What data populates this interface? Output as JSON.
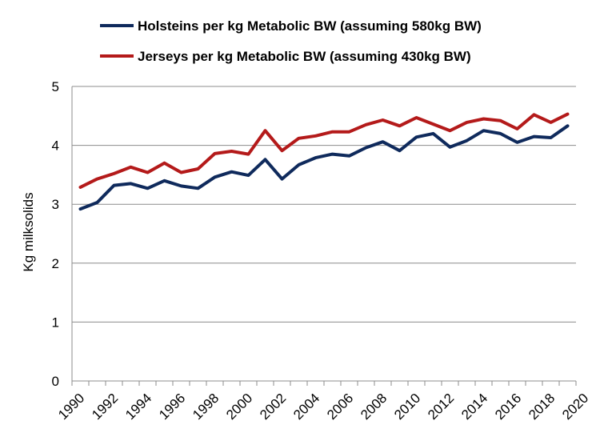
{
  "chart_data": {
    "type": "line",
    "title": "",
    "xlabel": "",
    "ylabel": "Kg milksolids",
    "ylim": [
      0,
      5
    ],
    "xlim": [
      1990,
      2020
    ],
    "y_ticks": [
      "0",
      "1",
      "2",
      "3",
      "4",
      "5"
    ],
    "x_ticks": [
      "1990",
      "1992",
      "1994",
      "1996",
      "1998",
      "2000",
      "2002",
      "2004",
      "2006",
      "2008",
      "2010",
      "2012",
      "2014",
      "2016",
      "2018",
      "2020"
    ],
    "grid": "horizontal",
    "legend_position": "top",
    "x": [
      1990.5,
      1991.5,
      1992.5,
      1993.5,
      1994.5,
      1995.5,
      1996.5,
      1997.5,
      1998.5,
      1999.5,
      2000.5,
      2001.5,
      2002.5,
      2003.5,
      2004.5,
      2005.5,
      2006.5,
      2007.5,
      2008.5,
      2009.5,
      2010.5,
      2011.5,
      2012.5,
      2013.5,
      2014.5,
      2015.5,
      2016.5,
      2017.5,
      2018.5,
      2019.5
    ],
    "series": [
      {
        "name": "Holsteins per kg Metabolic BW (assuming 580kg BW)",
        "color": "#0f2a5c",
        "values": [
          2.92,
          3.03,
          3.32,
          3.35,
          3.27,
          3.4,
          3.31,
          3.27,
          3.46,
          3.55,
          3.49,
          3.76,
          3.43,
          3.67,
          3.79,
          3.85,
          3.82,
          3.96,
          4.06,
          3.91,
          4.14,
          4.2,
          3.97,
          4.08,
          4.25,
          4.2,
          4.05,
          4.15,
          4.13,
          4.33
        ]
      },
      {
        "name": "Jerseys per kg Metabolic BW (assuming 430kg BW)",
        "color": "#b41a1a",
        "values": [
          3.29,
          3.43,
          3.52,
          3.63,
          3.54,
          3.7,
          3.54,
          3.6,
          3.86,
          3.9,
          3.85,
          4.25,
          3.91,
          4.12,
          4.16,
          4.23,
          4.23,
          4.35,
          4.43,
          4.33,
          4.47,
          4.36,
          4.25,
          4.39,
          4.45,
          4.42,
          4.28,
          4.52,
          4.39,
          4.53
        ]
      }
    ]
  }
}
